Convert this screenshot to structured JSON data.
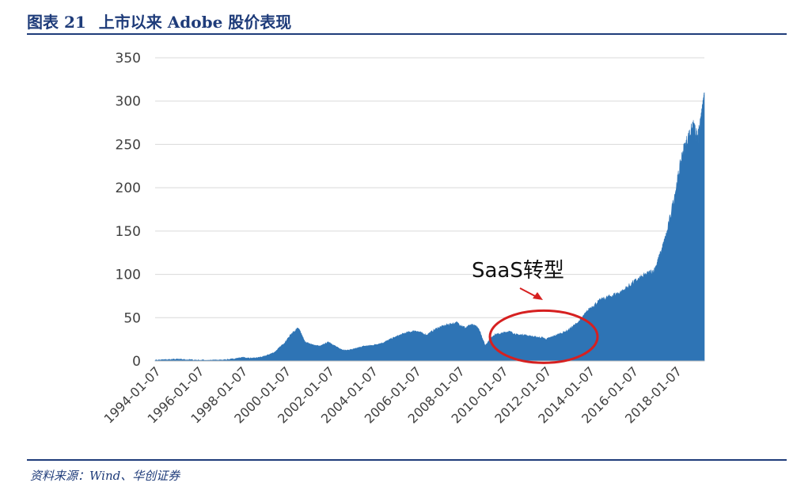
{
  "header": {
    "figure_number": "图表 21",
    "title": "上市以来 Adobe 股价表现"
  },
  "footer": {
    "source": "资料来源：Wind、华创证券"
  },
  "annotation": {
    "label": "SaaS转型",
    "arrow_color": "#d62020",
    "ellipse_color": "#d62020"
  },
  "colors": {
    "series": "#2e74b5",
    "accent": "#1f3c7a",
    "grid": "#d9d9d9"
  },
  "chart_data": {
    "type": "area",
    "title": "上市以来 Adobe 股价表现",
    "xlabel": "",
    "ylabel": "",
    "ylim": [
      0,
      350
    ],
    "yticks": [
      0,
      50,
      100,
      150,
      200,
      250,
      300,
      350
    ],
    "xlim": [
      1994.0,
      2019.3
    ],
    "xtick_labels": [
      "1994-01-07",
      "1996-01-07",
      "1998-01-07",
      "2000-01-07",
      "2002-01-07",
      "2004-01-07",
      "2006-01-07",
      "2008-01-07",
      "2010-01-07",
      "2012-01-07",
      "2014-01-07",
      "2016-01-07",
      "2018-01-07"
    ],
    "xtick_positions": [
      1994.0,
      1996.0,
      1998.0,
      2000.0,
      2002.0,
      2004.0,
      2006.0,
      2008.0,
      2010.0,
      2012.0,
      2014.0,
      2016.0,
      2018.0
    ],
    "grid": true,
    "legend": "none",
    "series": [
      {
        "x": [
          1994.0,
          1995.0,
          1996.0,
          1997.0,
          1997.5,
          1998.0,
          1998.5,
          1999.0,
          1999.5,
          2000.0,
          2000.3,
          2000.6,
          2000.75,
          2000.9,
          2001.2,
          2001.6,
          2002.0,
          2002.5,
          2002.8,
          2003.2,
          2003.6,
          2004.0,
          2004.5,
          2005.0,
          2005.5,
          2006.0,
          2006.5,
          2007.0,
          2007.5,
          2007.9,
          2008.3,
          2008.6,
          2008.9,
          2009.2,
          2009.6,
          2010.0,
          2010.3,
          2010.7,
          2011.0,
          2011.4,
          2011.8,
          2012.0,
          2012.5,
          2013.0,
          2013.5,
          2014.0,
          2014.5,
          2015.0,
          2015.5,
          2016.0,
          2016.5,
          2017.0,
          2017.3,
          2017.6,
          2018.0,
          2018.3,
          2018.6,
          2018.8,
          2019.0,
          2019.2,
          2019.3
        ],
        "values": [
          1,
          2,
          1,
          1,
          2,
          4,
          3,
          5,
          10,
          22,
          32,
          38,
          30,
          22,
          19,
          17,
          22,
          14,
          12,
          14,
          17,
          18,
          21,
          27,
          32,
          35,
          30,
          38,
          42,
          44,
          38,
          42,
          38,
          18,
          30,
          32,
          34,
          30,
          30,
          28,
          27,
          25,
          30,
          35,
          45,
          60,
          70,
          75,
          80,
          90,
          98,
          105,
          125,
          150,
          200,
          240,
          260,
          270,
          255,
          290,
          310
        ]
      }
    ]
  }
}
